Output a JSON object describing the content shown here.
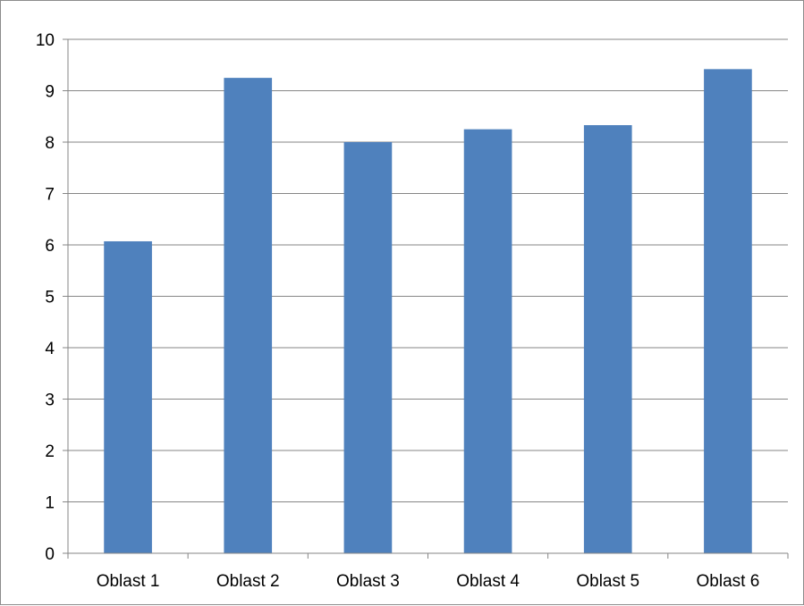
{
  "chart_data": {
    "type": "bar",
    "categories": [
      "Oblast 1",
      "Oblast 2",
      "Oblast 3",
      "Oblast 4",
      "Oblast 5",
      "Oblast 6"
    ],
    "series": [
      {
        "values": [
          6.07,
          9.25,
          8.0,
          8.25,
          8.33,
          9.42
        ]
      }
    ],
    "ylim": [
      0,
      10
    ],
    "yticks": [
      "0",
      "1",
      "2",
      "3",
      "4",
      "5",
      "6",
      "7",
      "8",
      "9",
      "10"
    ],
    "title": "",
    "xlabel": "",
    "ylabel": "",
    "grid": true,
    "legend": "none",
    "colors": {
      "bar": "#4f81bd",
      "grid": "#868686",
      "axis": "#868686",
      "frame": "#8c8c8c"
    }
  }
}
